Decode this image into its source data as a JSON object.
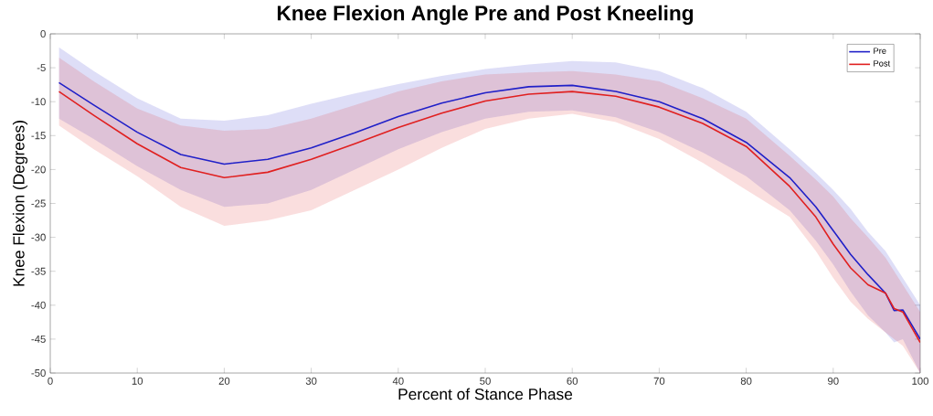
{
  "chart_data": {
    "type": "line",
    "title": "Knee Flexion Angle Pre and Post Kneeling",
    "xlabel": "Percent of Stance Phase",
    "ylabel": "Knee Flexion (Degrees)",
    "x": [
      1,
      5,
      10,
      15,
      20,
      25,
      30,
      35,
      40,
      45,
      50,
      55,
      60,
      65,
      70,
      75,
      80,
      85,
      88,
      90,
      92,
      94,
      96,
      97,
      98,
      100
    ],
    "series": [
      {
        "name": "Pre",
        "color": "#2020c8",
        "values": [
          -7.2,
          -10.5,
          -14.5,
          -17.8,
          -19.2,
          -18.5,
          -16.8,
          -14.6,
          -12.2,
          -10.2,
          -8.7,
          -7.8,
          -7.6,
          -8.5,
          -10.0,
          -12.5,
          -16.0,
          -21.2,
          -25.5,
          -29,
          -32.5,
          -35.5,
          -38.2,
          -40.8,
          -40.7,
          -45
        ],
        "upper": [
          -2,
          -5.5,
          -9.5,
          -12.5,
          -12.8,
          -12,
          -10.3,
          -8.8,
          -7.4,
          -6.2,
          -5.2,
          -4.5,
          -4,
          -4.2,
          -5.5,
          -8,
          -11.5,
          -17,
          -20.5,
          -23,
          -25.8,
          -29.2,
          -32,
          -34,
          -36,
          -40
        ],
        "lower": [
          -12.5,
          -15.5,
          -19.5,
          -23,
          -25.5,
          -25,
          -23,
          -20,
          -17,
          -14.5,
          -12.5,
          -11.5,
          -11.3,
          -12.3,
          -14.5,
          -17.5,
          -21,
          -26,
          -30.5,
          -34,
          -38,
          -41.5,
          -44,
          -45.5,
          -45,
          -50
        ]
      },
      {
        "name": "Post",
        "color": "#e02020",
        "values": [
          -8.5,
          -12,
          -16.2,
          -19.7,
          -21.2,
          -20.4,
          -18.5,
          -16.2,
          -13.8,
          -11.7,
          -9.9,
          -8.9,
          -8.5,
          -9.2,
          -10.8,
          -13.2,
          -16.6,
          -22.5,
          -27,
          -31,
          -34.5,
          -37,
          -38.2,
          -40.5,
          -41,
          -45.5
        ],
        "upper": [
          -3.5,
          -7,
          -11,
          -13.5,
          -14.3,
          -14,
          -12.5,
          -10.5,
          -8.5,
          -7,
          -6,
          -5.7,
          -5.5,
          -6,
          -7,
          -9.5,
          -12.5,
          -18,
          -21.5,
          -24,
          -27.2,
          -30,
          -33,
          -35,
          -37,
          -41
        ],
        "lower": [
          -13.5,
          -17,
          -21,
          -25.5,
          -28.3,
          -27.5,
          -26,
          -23,
          -20,
          -16.8,
          -14,
          -12.5,
          -11.8,
          -13,
          -15.5,
          -19,
          -23,
          -27,
          -32,
          -36,
          -39.5,
          -42,
          -44,
          -45,
          -46,
          -50
        ]
      }
    ],
    "xlim": [
      0,
      100
    ],
    "ylim": [
      -50,
      0
    ],
    "xticks": [
      0,
      10,
      20,
      30,
      40,
      50,
      60,
      70,
      80,
      90,
      100
    ],
    "yticks": [
      -50,
      -45,
      -40,
      -35,
      -30,
      -25,
      -20,
      -15,
      -10,
      -5,
      0
    ],
    "legend": "top right",
    "grid": false,
    "marker": "none",
    "line_style": "solid"
  }
}
